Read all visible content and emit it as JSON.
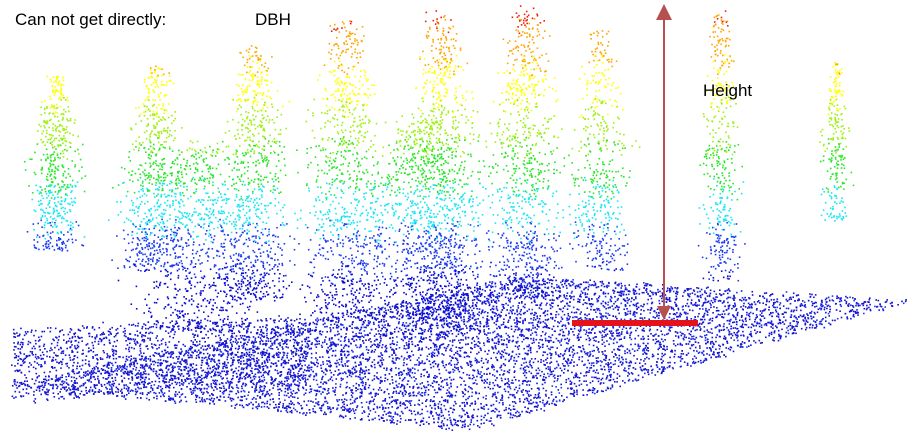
{
  "labels": {
    "cannot_get": "Can not get directly:",
    "dbh": "DBH",
    "height": "Height"
  },
  "colors": {
    "height_arrow": "#b5524f",
    "dbh_bar": "#e3141b",
    "ground_points": "#1414d2",
    "color_ramp": [
      "#0a0ad0",
      "#1e3cf0",
      "#19e6f5",
      "#28e628",
      "#a0f014",
      "#ffff00",
      "#ffa500",
      "#f01e0a"
    ]
  },
  "scene": {
    "type": "lidar-point-cloud",
    "annotations": [
      "height-arrow",
      "dbh-bar"
    ]
  }
}
